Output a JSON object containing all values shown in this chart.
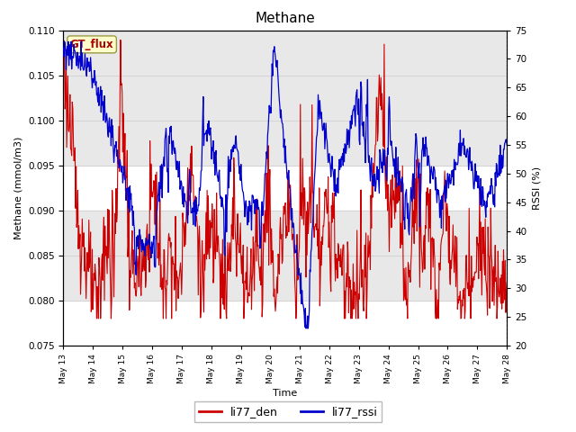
{
  "title": "Methane",
  "xlabel": "Time",
  "ylabel_left": "Methane (mmol/m3)",
  "ylabel_right": "RSSI (%)",
  "ylim_left": [
    0.075,
    0.11
  ],
  "ylim_right": [
    20,
    75
  ],
  "yticks_left": [
    0.075,
    0.08,
    0.085,
    0.09,
    0.095,
    0.1,
    0.105,
    0.11
  ],
  "yticks_right": [
    20,
    25,
    30,
    35,
    40,
    45,
    50,
    55,
    60,
    65,
    70,
    75
  ],
  "x_tick_labels": [
    "May 13",
    "May 14",
    "May 15",
    "May 16",
    "May 17",
    "May 18",
    "May 19",
    "May 20",
    "May 21",
    "May 22",
    "May 23",
    "May 24",
    "May 25",
    "May 26",
    "May 27",
    "May 28"
  ],
  "color_red": "#cc0000",
  "color_blue": "#0000cc",
  "legend_label_red": "li77_den",
  "legend_label_blue": "li77_rssi",
  "annotation_text": "GT_flux",
  "annotation_color": "#aa0000",
  "annotation_bg": "#ffffcc",
  "annotation_edge": "#999944",
  "background_color": "#ffffff",
  "band_color": "#e8e8e8",
  "band1_yleft": [
    0.095,
    0.11
  ],
  "band2_yleft": [
    0.08,
    0.09
  ],
  "title_fontsize": 11,
  "axis_fontsize": 8,
  "tick_fontsize": 7.5,
  "legend_fontsize": 9
}
